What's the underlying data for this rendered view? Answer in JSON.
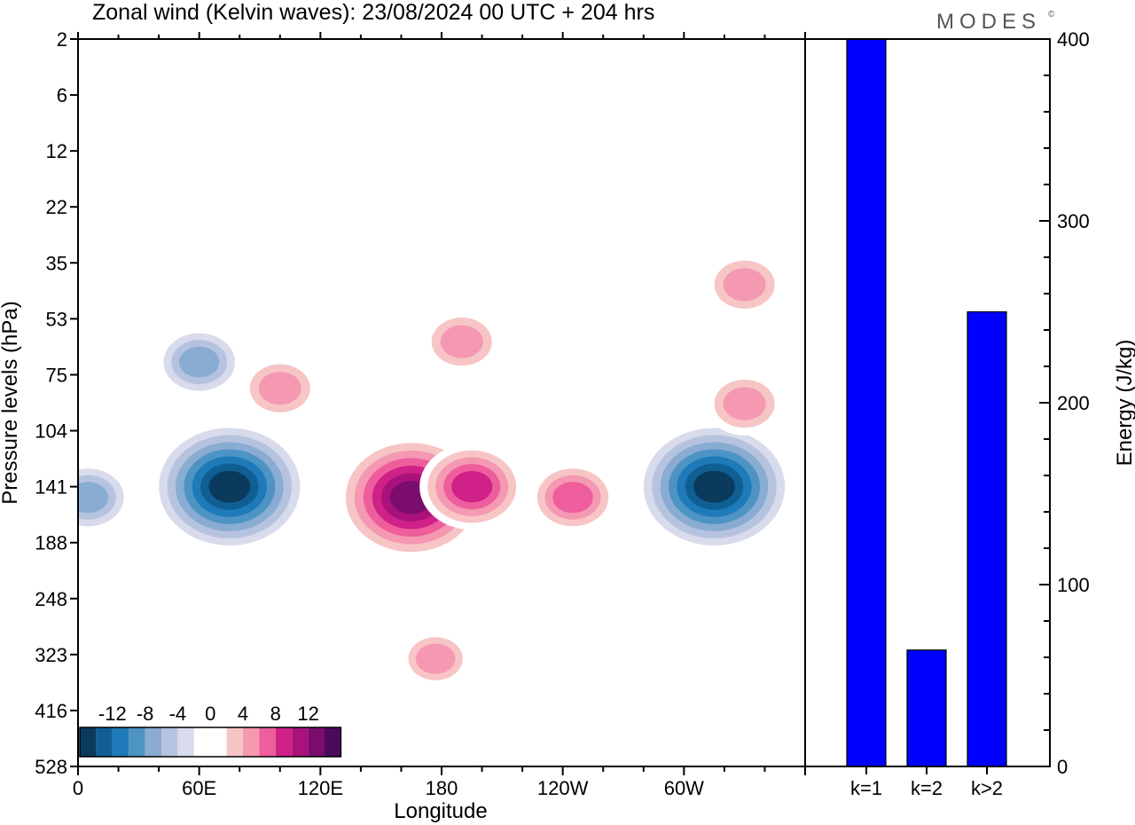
{
  "title": "Zonal wind (Kelvin waves):  23/08/2024  00 UTC  + 204 hrs",
  "brand": "MODES",
  "brand_mark": "©",
  "chart_data": [
    {
      "type": "heatmap",
      "xlabel": "Longitude",
      "ylabel": "Pressure levels (hPa)",
      "x_ticks": [
        "0",
        "60E",
        "120E",
        "180",
        "120W",
        "60W"
      ],
      "y_ticks": [
        "2",
        "6",
        "12",
        "22",
        "35",
        "53",
        "75",
        "104",
        "141",
        "188",
        "248",
        "323",
        "416",
        "528"
      ],
      "colorbar": {
        "labels": [
          "-12",
          "-8",
          "-4",
          "0",
          "4",
          "8",
          "12"
        ],
        "levels": [
          -16,
          -14,
          -12,
          -10,
          -8,
          -6,
          -4,
          -2,
          0,
          2,
          4,
          6,
          8,
          10,
          12,
          14,
          16
        ],
        "colors": [
          "#0a3a5c",
          "#0f5f94",
          "#1e7ab8",
          "#4d94c4",
          "#8aacd2",
          "#b6c3df",
          "#d7dbeb",
          "#ffffff",
          "#ffffff",
          "#f7c5c5",
          "#f598b2",
          "#ee5d9c",
          "#cf2188",
          "#a8127a",
          "#7a0c6e",
          "#4b0a5c"
        ]
      },
      "features": [
        {
          "name": "easterly max 60E-80E",
          "lon": 75,
          "level": 141,
          "value": -15
        },
        {
          "name": "easterly max 300E-320E",
          "lon": 315,
          "level": 141,
          "value": -15
        },
        {
          "name": "easterly 0-10E",
          "lon": 5,
          "level": 150,
          "value": -7
        },
        {
          "name": "westerly max near 165E",
          "lon": 165,
          "level": 150,
          "value": 14
        },
        {
          "name": "westerly 180-200E",
          "lon": 195,
          "level": 141,
          "value": 9
        },
        {
          "name": "westerly 120W-110W",
          "lon": 245,
          "level": 150,
          "value": 7
        },
        {
          "name": "westerly upper 190E",
          "lon": 190,
          "level": 62,
          "value": 6
        },
        {
          "name": "westerly upper 90E",
          "lon": 100,
          "level": 82,
          "value": 6
        },
        {
          "name": "westerly 330E",
          "lon": 330,
          "level": 42,
          "value": 6
        },
        {
          "name": "westerly 340E",
          "lon": 330,
          "level": 90,
          "value": 6
        },
        {
          "name": "easterly band 60E",
          "lon": 60,
          "level": 70,
          "value": -7
        },
        {
          "name": "westerly lower 180E",
          "lon": 177,
          "level": 330,
          "value": 5
        }
      ]
    },
    {
      "type": "bar",
      "categories": [
        "k=1",
        "k=2",
        "k>2"
      ],
      "values": [
        400,
        64,
        250
      ],
      "ylabel": "Energy (J/kg)",
      "ylim": [
        0,
        400
      ],
      "y_ticks": [
        0,
        100,
        200,
        300,
        400
      ],
      "bar_color": "#0000ff"
    }
  ]
}
